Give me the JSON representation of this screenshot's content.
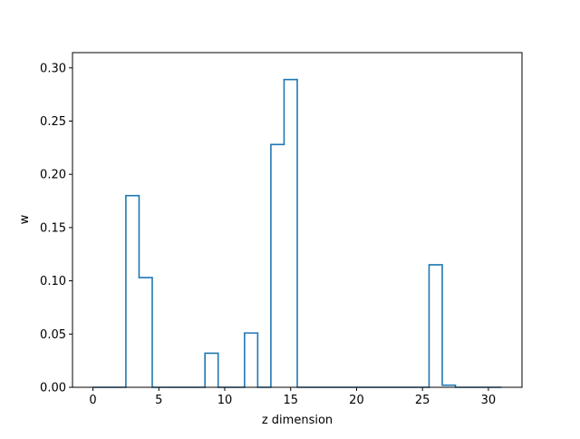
{
  "chart_data": {
    "type": "step",
    "title": "",
    "xlabel": "z dimension",
    "ylabel": "w",
    "xlim": [
      -1.55,
      32.55
    ],
    "ylim": [
      0.0,
      0.3143
    ],
    "x_ticks": [
      0,
      5,
      10,
      15,
      20,
      25,
      30
    ],
    "y_ticks": [
      0.0,
      0.05,
      0.1,
      0.15,
      0.2,
      0.25,
      0.3
    ],
    "y_tick_labels": [
      "0.00",
      "0.05",
      "0.10",
      "0.15",
      "0.20",
      "0.25",
      "0.30"
    ],
    "grid": false,
    "legend": false,
    "step_where": "mid",
    "line_color": "#1f77b4",
    "series": [
      {
        "x": [
          0,
          1,
          2,
          3,
          4,
          5,
          6,
          7,
          8,
          9,
          10,
          11,
          12,
          13,
          14,
          15,
          16,
          17,
          18,
          19,
          20,
          21,
          22,
          23,
          24,
          25,
          26,
          27,
          28,
          29,
          30,
          31
        ],
        "values": [
          0,
          0,
          0,
          0.18,
          0.103,
          0,
          0,
          0,
          0,
          0.032,
          0,
          0,
          0.051,
          0,
          0.228,
          0.289,
          0,
          0,
          0,
          0,
          0,
          0,
          0,
          0,
          0,
          0,
          0.115,
          0.002,
          0,
          0,
          0,
          0
        ]
      }
    ]
  }
}
